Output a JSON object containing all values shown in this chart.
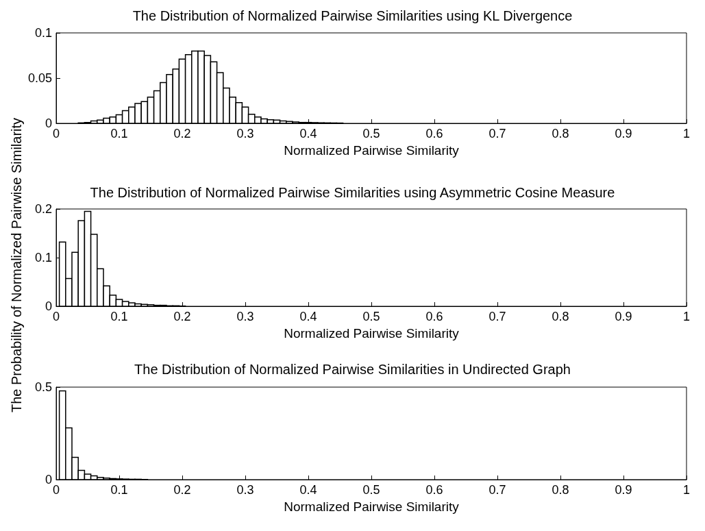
{
  "chart_data": [
    {
      "type": "histogram",
      "title": "The Distribution of Normalized Pairwise Similarities using KL Divergence",
      "xlabel": "Normalized Pairwise Similarity",
      "bins": [
        0.035,
        0.045,
        0.055,
        0.065,
        0.075,
        0.085,
        0.095,
        0.105,
        0.115,
        0.125,
        0.135,
        0.145,
        0.155,
        0.165,
        0.175,
        0.185,
        0.195,
        0.205,
        0.215,
        0.225,
        0.235,
        0.245,
        0.255,
        0.265,
        0.275,
        0.285,
        0.295,
        0.305,
        0.315,
        0.325,
        0.335,
        0.345,
        0.355,
        0.365,
        0.375,
        0.385,
        0.395,
        0.405,
        0.415,
        0.425,
        0.435,
        0.445,
        0.455
      ],
      "values": [
        0.0005,
        0.001,
        0.0026,
        0.0036,
        0.0056,
        0.007,
        0.0094,
        0.014,
        0.018,
        0.022,
        0.024,
        0.029,
        0.036,
        0.045,
        0.054,
        0.06,
        0.071,
        0.076,
        0.08,
        0.08,
        0.075,
        0.068,
        0.056,
        0.039,
        0.029,
        0.023,
        0.018,
        0.01,
        0.007,
        0.005,
        0.004,
        0.0036,
        0.0026,
        0.002,
        0.0015,
        0.001,
        0.001,
        0.0008,
        0.0006,
        0.0005,
        0.0004,
        0.0003
      ],
      "xlim": [
        0,
        1
      ],
      "xticks": [
        0,
        0.1,
        0.2,
        0.3,
        0.4,
        0.5,
        0.6,
        0.7,
        0.8,
        0.9,
        1
      ],
      "ylim": [
        0,
        0.1
      ],
      "yticks": [
        0,
        0.05,
        0.1
      ],
      "color": "#ffffff",
      "grid": false
    },
    {
      "type": "histogram",
      "title": "The Distribution of Normalized Pairwise Similarities using Asymmetric Cosine Measure",
      "xlabel": "Normalized Pairwise Similarity",
      "ylabel": "The Probability of Normalized Pairwise Similarity",
      "bins": [
        0.005,
        0.015,
        0.025,
        0.035,
        0.045,
        0.055,
        0.065,
        0.075,
        0.085,
        0.095,
        0.105,
        0.115,
        0.125,
        0.135,
        0.145,
        0.155,
        0.165,
        0.175,
        0.185,
        0.195,
        0.205
      ],
      "values": [
        0.132,
        0.057,
        0.111,
        0.176,
        0.195,
        0.148,
        0.077,
        0.042,
        0.023,
        0.014,
        0.01,
        0.007,
        0.005,
        0.004,
        0.003,
        0.002,
        0.002,
        0.001,
        0.001,
        0.0005
      ],
      "xlim": [
        0,
        1
      ],
      "xticks": [
        0,
        0.1,
        0.2,
        0.3,
        0.4,
        0.5,
        0.6,
        0.7,
        0.8,
        0.9,
        1
      ],
      "ylim": [
        0,
        0.2
      ],
      "yticks": [
        0,
        0.1,
        0.2
      ],
      "color": "#ffffff",
      "grid": false
    },
    {
      "type": "histogram",
      "title": "The Distribution of Normalized Pairwise Similarities in Undirected Graph",
      "xlabel": "Normalized Pairwise Similarity",
      "bins": [
        0.005,
        0.015,
        0.025,
        0.035,
        0.045,
        0.055,
        0.065,
        0.075,
        0.085,
        0.095,
        0.105,
        0.115,
        0.125,
        0.135,
        0.145
      ],
      "values": [
        0.48,
        0.28,
        0.12,
        0.05,
        0.03,
        0.02,
        0.012,
        0.008,
        0.006,
        0.004,
        0.003,
        0.002,
        0.002,
        0.001
      ],
      "xlim": [
        0,
        1
      ],
      "xticks": [
        0,
        0.1,
        0.2,
        0.3,
        0.4,
        0.5,
        0.6,
        0.7,
        0.8,
        0.9,
        1
      ],
      "ylim": [
        0,
        0.5
      ],
      "yticks": [
        0,
        0.5
      ],
      "color": "#ffffff",
      "grid": false
    }
  ]
}
